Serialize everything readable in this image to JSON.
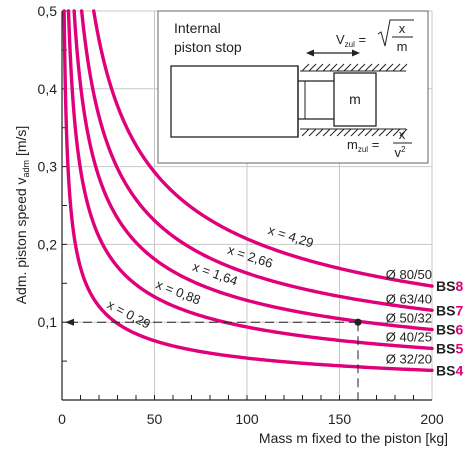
{
  "chart_data": {
    "type": "line",
    "xlabel": "Mass m fixed to the piston [kg]",
    "ylabel": "Adm. piston speed v",
    "ylabel_sub": "adm",
    "ylabel_unit": " [m/s]",
    "xlim": [
      0,
      200
    ],
    "ylim": [
      0,
      0.5
    ],
    "x_ticks": [
      {
        "v": 0,
        "label": "0"
      },
      {
        "v": 50,
        "label": "50"
      },
      {
        "v": 100,
        "label": "100"
      },
      {
        "v": 150,
        "label": "150"
      },
      {
        "v": 200,
        "label": "200"
      }
    ],
    "y_ticks": [
      {
        "v": 0.1,
        "label": "0,1"
      },
      {
        "v": 0.2,
        "label": "0,2"
      },
      {
        "v": 0.3,
        "label": "0,3"
      },
      {
        "v": 0.4,
        "label": "0,4"
      },
      {
        "v": 0.5,
        "label": "0,5"
      }
    ],
    "grid": true,
    "series_color": "#e0007a",
    "series": [
      {
        "name": "BS8",
        "x_value": 4.29,
        "x_label": "x = 4,29",
        "diameter": "Ø 80/50",
        "bs_prefix": "BS",
        "bs_num": "8"
      },
      {
        "name": "BS7",
        "x_value": 2.66,
        "x_label": "x = 2,66",
        "diameter": "Ø 63/40",
        "bs_prefix": "BS",
        "bs_num": "7"
      },
      {
        "name": "BS6",
        "x_value": 1.64,
        "x_label": "x = 1,64",
        "diameter": "Ø 50/32",
        "bs_prefix": "BS",
        "bs_num": "6"
      },
      {
        "name": "BS5",
        "x_value": 0.88,
        "x_label": "x = 0,88",
        "diameter": "Ø 40/25",
        "bs_prefix": "BS",
        "bs_num": "5"
      },
      {
        "name": "BS4",
        "x_value": 0.29,
        "x_label": "x = 0,29",
        "diameter": "Ø 32/20",
        "bs_prefix": "BS",
        "bs_num": "4"
      }
    ],
    "example_point": {
      "x": 160,
      "y": 0.1
    },
    "inset": {
      "title_line1": "Internal",
      "title_line2": "piston stop",
      "mass_label": "m",
      "v_formula_lhs": "V",
      "v_formula_sub": "zul",
      "v_formula_num": "x",
      "v_formula_den": "m",
      "m_formula_lhs": "m",
      "m_formula_sub": "zul",
      "m_formula_num": "x",
      "m_formula_den": "v",
      "m_formula_den_sup": "2"
    }
  }
}
